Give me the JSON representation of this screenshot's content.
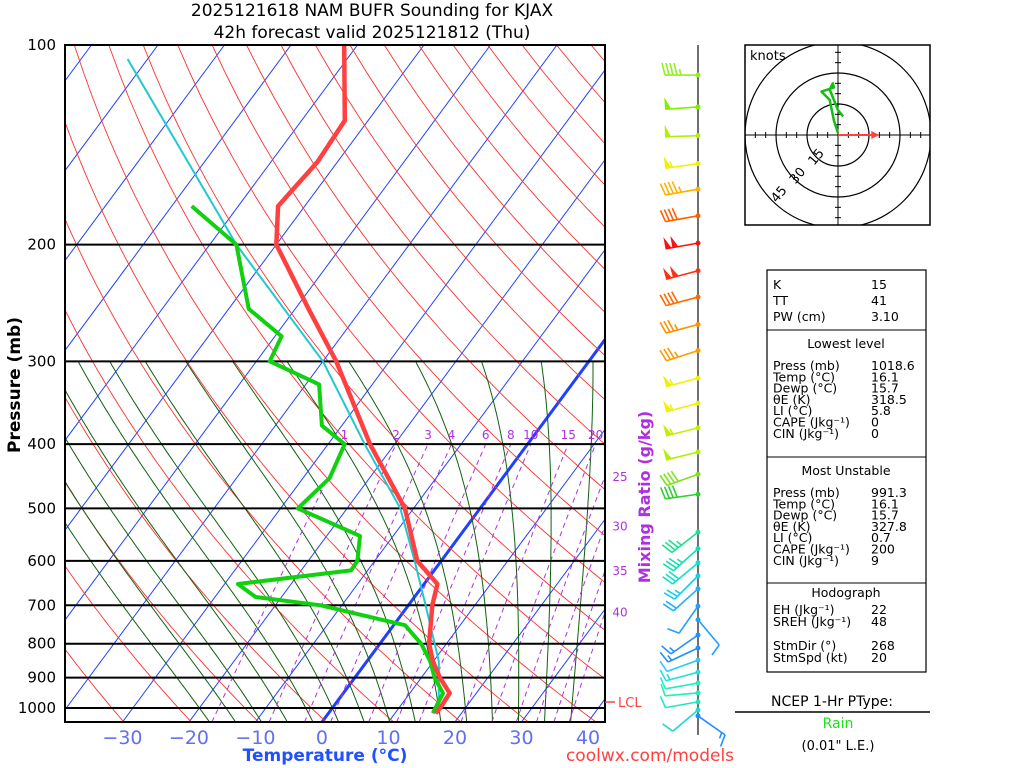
{
  "header": {
    "title_line1": "2025121618 NAM BUFR Sounding for KJAX",
    "title_line2": "42h forecast valid 2025121812 (Thu)"
  },
  "axes": {
    "y_label": "Pressure (mb)",
    "x_label": "Temperature (°C)",
    "mixing_label": "Mixing Ratio (g/kg)",
    "credit": "coolwx.com/models",
    "lcl_label": "LCL"
  },
  "colors": {
    "temperature": "#ff4040",
    "dewpoint": "#10d010",
    "parcel": "#20c8d0",
    "isotherm": "#2040ff",
    "dry_adiabat": "#ff3030",
    "moist_adiabat": "#106010",
    "mixing_ratio": "#b030e0"
  },
  "chart_data": {
    "type": "line",
    "title": "2025121618 NAM BUFR Sounding for KJAX — 42h forecast valid 2025121812 (Thu)",
    "xlabel": "Temperature (°C)",
    "ylabel": "Pressure (mb)",
    "pressure_ticks": [
      "100",
      "200",
      "300",
      "400",
      "500",
      "600",
      "700",
      "800",
      "900",
      "1000"
    ],
    "pressure_tick_values": [
      100,
      200,
      300,
      400,
      500,
      600,
      700,
      800,
      900,
      1000
    ],
    "temp_ticks": [
      "-30",
      "-20",
      "-10",
      "0",
      "10",
      "20",
      "30",
      "40"
    ],
    "temp_tick_values": [
      -30,
      -20,
      -10,
      0,
      10,
      20,
      30,
      40
    ],
    "ylim": [
      1050,
      100
    ],
    "mixing_ratios": [
      "1",
      "2",
      "3",
      "4",
      "6",
      "8",
      "10",
      "15",
      "20",
      "25",
      "30",
      "35",
      "40"
    ],
    "mixing_ratio_values": [
      1,
      2,
      3,
      4,
      6,
      8,
      10,
      15,
      20,
      25,
      30,
      35,
      40
    ],
    "series": [
      {
        "name": "Temperature",
        "p": [
          1018.6,
          1000,
          950,
          900,
          850,
          800,
          700,
          650,
          600,
          500,
          400,
          300,
          250,
          200,
          175,
          150,
          130,
          100
        ],
        "T": [
          16.1,
          16.2,
          16.0,
          12.8,
          9.9,
          7.4,
          3.6,
          2.0,
          -3.6,
          -11.3,
          -23.7,
          -38,
          -48,
          -60,
          -64,
          -63,
          -63.5,
          -72
        ]
      },
      {
        "name": "Dewpoint",
        "p": [
          1018.6,
          1000,
          950,
          900,
          850,
          800,
          750,
          700,
          680,
          650,
          620,
          600,
          550,
          500,
          450,
          400,
          375,
          325,
          300,
          275,
          250,
          200,
          175
        ],
        "T": [
          15.7,
          15.5,
          15.0,
          12.0,
          9.5,
          6.2,
          1.7,
          -13.2,
          -23.9,
          -28,
          -12.5,
          -12.6,
          -15,
          -27.4,
          -26,
          -27.5,
          -33,
          -38,
          -48,
          -49,
          -57,
          -66,
          -77
        ]
      },
      {
        "name": "Parcel",
        "p": [
          1018.6,
          1000,
          850,
          700,
          600,
          500,
          400,
          300,
          200,
          105
        ],
        "T": [
          16.1,
          16.0,
          10.8,
          2.6,
          -4,
          -12,
          -24.5,
          -40,
          -66,
          -103
        ]
      }
    ],
    "lcl_pressure": 980,
    "winds": [
      {
        "p": 111,
        "dir": 270,
        "spd": 45,
        "color": "#90f020"
      },
      {
        "p": 124,
        "dir": 266,
        "spd": 50,
        "color": "#80f000"
      },
      {
        "p": 137,
        "dir": 268,
        "spd": 50,
        "color": "#b0f000"
      },
      {
        "p": 151,
        "dir": 262,
        "spd": 55,
        "color": "#f0f000"
      },
      {
        "p": 165,
        "dir": 260,
        "spd": 45,
        "color": "#ffb000"
      },
      {
        "p": 181,
        "dir": 260,
        "spd": 40,
        "color": "#ff6000"
      },
      {
        "p": 199,
        "dir": 260,
        "spd": 100,
        "color": "#ff1010"
      },
      {
        "p": 219,
        "dir": 255,
        "spd": 100,
        "color": "#ff3010"
      },
      {
        "p": 240,
        "dir": 255,
        "spd": 40,
        "color": "#ff6a00"
      },
      {
        "p": 264,
        "dir": 255,
        "spd": 35,
        "color": "#ff9000"
      },
      {
        "p": 289,
        "dir": 252,
        "spd": 35,
        "color": "#ff9a00"
      },
      {
        "p": 318,
        "dir": 255,
        "spd": 55,
        "color": "#f0f000"
      },
      {
        "p": 347,
        "dir": 255,
        "spd": 55,
        "color": "#f0f000"
      },
      {
        "p": 378,
        "dir": 256,
        "spd": 55,
        "color": "#c0f000"
      },
      {
        "p": 411,
        "dir": 256,
        "spd": 50,
        "color": "#b0f000"
      },
      {
        "p": 444,
        "dir": 250,
        "spd": 40,
        "color": "#80e020"
      },
      {
        "p": 476,
        "dir": 262,
        "spd": 40,
        "color": "#30d030"
      },
      {
        "p": 543,
        "dir": 232,
        "spd": 35,
        "color": "#20e090"
      },
      {
        "p": 575,
        "dir": 228,
        "spd": 35,
        "color": "#10e0b0"
      },
      {
        "p": 604,
        "dir": 230,
        "spd": 30,
        "color": "#10e0d0"
      },
      {
        "p": 632,
        "dir": 225,
        "spd": 25,
        "color": "#10d0f0"
      },
      {
        "p": 661,
        "dir": 228,
        "spd": 20,
        "color": "#20b0ff"
      },
      {
        "p": 702,
        "dir": 215,
        "spd": 10,
        "color": "#20a0ff"
      },
      {
        "p": 736,
        "dir": 140,
        "spd": 10,
        "color": "#20a0ff"
      },
      {
        "p": 776,
        "dir": 235,
        "spd": 15,
        "color": "#1e90ff"
      },
      {
        "p": 812,
        "dir": 245,
        "spd": 15,
        "color": "#1e90ff"
      },
      {
        "p": 847,
        "dir": 250,
        "spd": 10,
        "color": "#30c8ff"
      },
      {
        "p": 883,
        "dir": 255,
        "spd": 15,
        "color": "#20e0e0"
      },
      {
        "p": 917,
        "dir": 260,
        "spd": 10,
        "color": "#20f0c0"
      },
      {
        "p": 949,
        "dir": 265,
        "spd": 10,
        "color": "#20f0b0"
      },
      {
        "p": 979,
        "dir": 260,
        "spd": 10,
        "color": "#20e8c0"
      },
      {
        "p": 1007,
        "dir": 230,
        "spd": 10,
        "color": "#20d8d0"
      },
      {
        "p": 1028,
        "dir": 125,
        "spd": 15,
        "color": "#1e90ff"
      }
    ],
    "hodograph": {
      "units_label": "knots",
      "ring_labels": [
        "15",
        "30",
        "45"
      ],
      "ring_values": [
        15,
        30,
        45
      ],
      "trace_uv": [
        [
          0,
          1
        ],
        [
          -2,
          7
        ],
        [
          -4,
          17
        ],
        [
          -8,
          21
        ],
        [
          -2,
          23
        ],
        [
          -2.5,
          25
        ],
        [
          -4,
          22
        ],
        [
          0,
          12
        ],
        [
          2.5,
          9
        ]
      ],
      "storm_motion_uv": [
        20,
        0
      ]
    }
  },
  "stats": {
    "indices": [
      {
        "label": "K",
        "value": "15"
      },
      {
        "label": "TT",
        "value": "41"
      },
      {
        "label": "PW (cm)",
        "value": "3.10"
      }
    ],
    "lowest_level": {
      "heading": "Lowest level",
      "rows": [
        {
          "label": "Press (mb)",
          "value": "1018.6"
        },
        {
          "label": "Temp (°C)",
          "value": "16.1"
        },
        {
          "label": "Dewp (°C)",
          "value": "15.7"
        },
        {
          "label": "θE (K)",
          "value": "318.5"
        },
        {
          "label": "LI (°C)",
          "value": "5.8"
        },
        {
          "label": "CAPE (Jkg⁻¹)",
          "value": "0"
        },
        {
          "label": "CIN (Jkg⁻¹)",
          "value": "0"
        }
      ]
    },
    "most_unstable": {
      "heading": "Most Unstable",
      "rows": [
        {
          "label": "Press (mb)",
          "value": "991.3"
        },
        {
          "label": "Temp (°C)",
          "value": "16.1"
        },
        {
          "label": "Dewp (°C)",
          "value": "15.7"
        },
        {
          "label": "θE (K)",
          "value": "327.8"
        },
        {
          "label": "LI (°C)",
          "value": "0.7"
        },
        {
          "label": "CAPE (Jkg⁻¹)",
          "value": "200"
        },
        {
          "label": "CIN (Jkg⁻¹)",
          "value": "9"
        }
      ]
    },
    "hodograph": {
      "heading": "Hodograph",
      "rows": [
        {
          "label": "EH (Jkg⁻¹)",
          "value": "22"
        },
        {
          "label": "SREH (Jkg⁻¹)",
          "value": "48"
        },
        {
          "label": "StmDir (°)",
          "value": "268"
        },
        {
          "label": "StmSpd (kt)",
          "value": "20"
        }
      ]
    }
  },
  "ptype": {
    "heading": "NCEP 1-Hr PType:",
    "value": "Rain",
    "value_color": "#20e020",
    "amount": "(0.01\" L.E.)"
  }
}
